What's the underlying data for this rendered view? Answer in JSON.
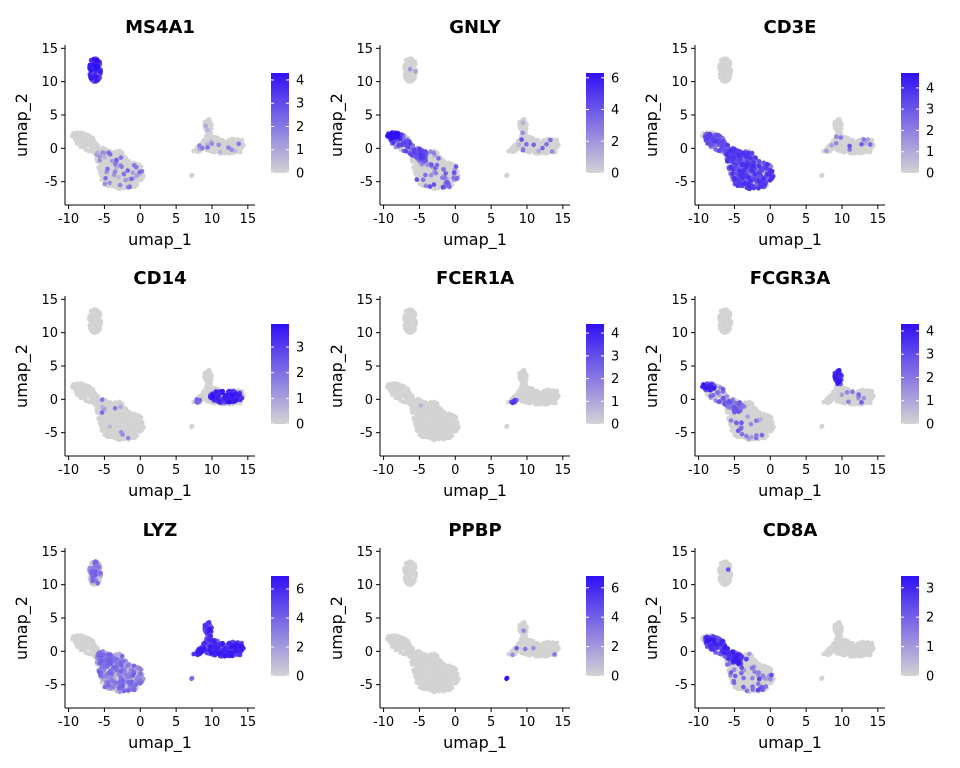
{
  "chart_data": [
    {
      "type": "scatter",
      "title": "MS4A1",
      "xlabel": "umap_1",
      "ylabel": "umap_2",
      "xlim": [
        -10.5,
        16
      ],
      "ylim": [
        -8.5,
        15.5
      ],
      "x_ticks": [
        "-10",
        "-5",
        "0",
        "5",
        "10",
        "15"
      ],
      "y_ticks": [
        "-5",
        "0",
        "5",
        "10",
        "15"
      ],
      "grid": false,
      "colorbar": {
        "min": 0,
        "max": 4.3,
        "ticks": [
          "0",
          "1",
          "2",
          "3",
          "4"
        ],
        "low_color": "#d3d3d3",
        "high_color": "#3010f5"
      },
      "legend": "right",
      "hot": [
        {
          "region": "bcell",
          "intensity": 0.75,
          "fraction": 0.95
        },
        {
          "region": "tmain",
          "intensity": 0.35,
          "fraction": 0.08
        },
        {
          "region": "mono",
          "intensity": 0.3,
          "fraction": 0.04
        }
      ]
    },
    {
      "type": "scatter",
      "title": "GNLY",
      "xlabel": "umap_1",
      "ylabel": "umap_2",
      "xlim": [
        -10.5,
        16
      ],
      "ylim": [
        -8.5,
        15.5
      ],
      "x_ticks": [
        "-10",
        "-5",
        "0",
        "5",
        "10",
        "15"
      ],
      "y_ticks": [
        "-5",
        "0",
        "5",
        "10",
        "15"
      ],
      "grid": false,
      "colorbar": {
        "min": 0,
        "max": 6.3,
        "ticks": [
          "0",
          "2",
          "4",
          "6"
        ],
        "low_color": "#d3d3d3",
        "high_color": "#3010f5"
      },
      "legend": "right",
      "hot": [
        {
          "region": "nk",
          "intensity": 0.85,
          "fraction": 0.95
        },
        {
          "region": "cd8",
          "intensity": 0.55,
          "fraction": 0.5
        },
        {
          "region": "tmain",
          "intensity": 0.45,
          "fraction": 0.12
        },
        {
          "region": "mono",
          "intensity": 0.4,
          "fraction": 0.06
        },
        {
          "region": "bcell",
          "intensity": 0.3,
          "fraction": 0.05
        }
      ]
    },
    {
      "type": "scatter",
      "title": "CD3E",
      "xlabel": "umap_1",
      "ylabel": "umap_2",
      "xlim": [
        -10.5,
        16
      ],
      "ylim": [
        -8.5,
        15.5
      ],
      "x_ticks": [
        "-10",
        "-5",
        "0",
        "5",
        "10",
        "15"
      ],
      "y_ticks": [
        "-5",
        "0",
        "5",
        "10",
        "15"
      ],
      "grid": false,
      "colorbar": {
        "min": 0,
        "max": 4.7,
        "ticks": [
          "0",
          "1",
          "2",
          "3",
          "4"
        ],
        "low_color": "#d3d3d3",
        "high_color": "#3010f5"
      },
      "legend": "right",
      "hot": [
        {
          "region": "tmain",
          "intensity": 0.6,
          "fraction": 0.7
        },
        {
          "region": "cd8",
          "intensity": 0.55,
          "fraction": 0.7
        },
        {
          "region": "mono",
          "intensity": 0.4,
          "fraction": 0.04
        }
      ]
    },
    {
      "type": "scatter",
      "title": "CD14",
      "xlabel": "umap_1",
      "ylabel": "umap_2",
      "xlim": [
        -10.5,
        16
      ],
      "ylim": [
        -8.5,
        15.5
      ],
      "x_ticks": [
        "-10",
        "-5",
        "0",
        "5",
        "10",
        "15"
      ],
      "y_ticks": [
        "-5",
        "0",
        "5",
        "10",
        "15"
      ],
      "grid": false,
      "colorbar": {
        "min": 0,
        "max": 3.9,
        "ticks": [
          "0",
          "1",
          "2",
          "3"
        ],
        "low_color": "#d3d3d3",
        "high_color": "#3010f5"
      },
      "legend": "right",
      "hot": [
        {
          "region": "monoBody",
          "intensity": 0.75,
          "fraction": 0.8
        },
        {
          "region": "monoNeck",
          "intensity": 0.45,
          "fraction": 0.35
        },
        {
          "region": "tmain",
          "intensity": 0.3,
          "fraction": 0.03
        }
      ]
    },
    {
      "type": "scatter",
      "title": "FCER1A",
      "xlabel": "umap_1",
      "ylabel": "umap_2",
      "xlim": [
        -10.5,
        16
      ],
      "ylim": [
        -8.5,
        15.5
      ],
      "x_ticks": [
        "-10",
        "-5",
        "0",
        "5",
        "10",
        "15"
      ],
      "y_ticks": [
        "-5",
        "0",
        "5",
        "10",
        "15"
      ],
      "grid": false,
      "colorbar": {
        "min": 0,
        "max": 4.4,
        "ticks": [
          "0",
          "1",
          "2",
          "3",
          "4"
        ],
        "low_color": "#d3d3d3",
        "high_color": "#3010f5"
      },
      "legend": "right",
      "hot": [
        {
          "region": "dc",
          "intensity": 0.7,
          "fraction": 0.9
        },
        {
          "region": "tmain",
          "intensity": 0.35,
          "fraction": 0.01
        }
      ]
    },
    {
      "type": "scatter",
      "title": "FCGR3A",
      "xlabel": "umap_1",
      "ylabel": "umap_2",
      "xlim": [
        -10.5,
        16
      ],
      "ylim": [
        -8.5,
        15.5
      ],
      "x_ticks": [
        "-10",
        "-5",
        "0",
        "5",
        "10",
        "15"
      ],
      "y_ticks": [
        "-5",
        "0",
        "5",
        "10",
        "15"
      ],
      "grid": false,
      "colorbar": {
        "min": 0,
        "max": 4.3,
        "ticks": [
          "0",
          "1",
          "2",
          "3",
          "4"
        ],
        "low_color": "#d3d3d3",
        "high_color": "#3010f5"
      },
      "legend": "right",
      "hot": [
        {
          "region": "monoTop",
          "intensity": 0.75,
          "fraction": 0.85
        },
        {
          "region": "nk",
          "intensity": 0.7,
          "fraction": 0.9
        },
        {
          "region": "cd8",
          "intensity": 0.4,
          "fraction": 0.25
        },
        {
          "region": "tmain",
          "intensity": 0.4,
          "fraction": 0.06
        },
        {
          "region": "monoBody",
          "intensity": 0.4,
          "fraction": 0.08
        }
      ]
    },
    {
      "type": "scatter",
      "title": "LYZ",
      "xlabel": "umap_1",
      "ylabel": "umap_2",
      "xlim": [
        -10.5,
        16
      ],
      "ylim": [
        -8.5,
        15.5
      ],
      "x_ticks": [
        "-10",
        "-5",
        "0",
        "5",
        "10",
        "15"
      ],
      "y_ticks": [
        "-5",
        "0",
        "5",
        "10",
        "15"
      ],
      "grid": false,
      "colorbar": {
        "min": 0,
        "max": 6.9,
        "ticks": [
          "0",
          "2",
          "4",
          "6"
        ],
        "low_color": "#d3d3d3",
        "high_color": "#3010f5"
      },
      "legend": "right",
      "hot": [
        {
          "region": "mono",
          "intensity": 0.72,
          "fraction": 0.98
        },
        {
          "region": "tmain",
          "intensity": 0.35,
          "fraction": 0.5
        },
        {
          "region": "bcell",
          "intensity": 0.35,
          "fraction": 0.5
        },
        {
          "region": "dc",
          "intensity": 0.7,
          "fraction": 1
        },
        {
          "region": "platelet",
          "intensity": 0.55,
          "fraction": 1
        }
      ]
    },
    {
      "type": "scatter",
      "title": "PPBP",
      "xlabel": "umap_1",
      "ylabel": "umap_2",
      "xlim": [
        -10.5,
        16
      ],
      "ylim": [
        -8.5,
        15.5
      ],
      "x_ticks": [
        "-10",
        "-5",
        "0",
        "5",
        "10",
        "15"
      ],
      "y_ticks": [
        "-5",
        "0",
        "5",
        "10",
        "15"
      ],
      "grid": false,
      "colorbar": {
        "min": 0,
        "max": 6.8,
        "ticks": [
          "0",
          "2",
          "4",
          "6"
        ],
        "low_color": "#d3d3d3",
        "high_color": "#3010f5"
      },
      "legend": "right",
      "hot": [
        {
          "region": "platelet",
          "intensity": 1,
          "fraction": 1
        },
        {
          "region": "mono",
          "intensity": 0.35,
          "fraction": 0.02
        }
      ]
    },
    {
      "type": "scatter",
      "title": "CD8A",
      "xlabel": "umap_1",
      "ylabel": "umap_2",
      "xlim": [
        -10.5,
        16
      ],
      "ylim": [
        -8.5,
        15.5
      ],
      "x_ticks": [
        "-10",
        "-5",
        "0",
        "5",
        "10",
        "15"
      ],
      "y_ticks": [
        "-5",
        "0",
        "5",
        "10",
        "15"
      ],
      "grid": false,
      "colorbar": {
        "min": 0,
        "max": 3.4,
        "ticks": [
          "0",
          "1",
          "2",
          "3"
        ],
        "low_color": "#d3d3d3",
        "high_color": "#3010f5"
      },
      "legend": "right",
      "hot": [
        {
          "region": "cd8",
          "intensity": 0.7,
          "fraction": 0.75
        },
        {
          "region": "tmain",
          "intensity": 0.5,
          "fraction": 0.1
        },
        {
          "region": "nk",
          "intensity": 0.4,
          "fraction": 0.1
        },
        {
          "region": "bcell",
          "intensity": 0.6,
          "fraction": 0.03
        }
      ]
    }
  ]
}
